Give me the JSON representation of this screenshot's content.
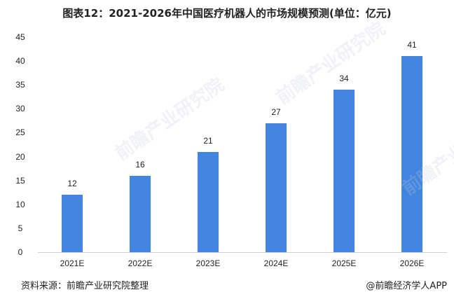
{
  "title": "图表12：2021-2026年中国医疗机器人的市场规模预测(单位：亿元)",
  "chart_data": {
    "type": "bar",
    "title": "图表12：2021-2026年中国医疗机器人的市场规模预测(单位：亿元)",
    "categories": [
      "2021E",
      "2022E",
      "2023E",
      "2024E",
      "2025E",
      "2026E"
    ],
    "values": [
      12,
      16,
      21,
      27,
      34,
      41
    ],
    "xlabel": "",
    "ylabel": "亿元",
    "ylim": [
      0,
      45
    ],
    "yticks": [
      0,
      5,
      10,
      15,
      20,
      25,
      30,
      35,
      40,
      45
    ],
    "grid": false,
    "legend": "none",
    "bar_color": "#4185e0",
    "data_labels": true
  },
  "footer": {
    "source": "资料来源：前瞻产业研究院整理",
    "credit": "@前瞻经济学人APP"
  },
  "watermark": "前瞻产业研究院"
}
